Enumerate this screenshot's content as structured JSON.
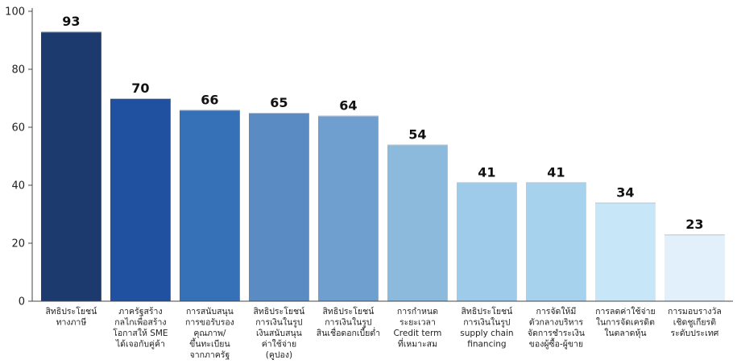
{
  "chart_data": {
    "type": "bar",
    "title": "",
    "xlabel": "",
    "ylabel": "",
    "ylim": [
      0,
      100
    ],
    "yticks": [
      0,
      20,
      40,
      60,
      80,
      100
    ],
    "grid": false,
    "categories": [
      [
        "สิทธิประโยชน์",
        "ทางภาษี"
      ],
      [
        "ภาครัฐสร้าง",
        "กลไกเพื่อสร้าง",
        "โอกาสให้ SME",
        "ได้เจอกับคู่ค้า"
      ],
      [
        "การสนับสนุน",
        "การขอรับรอง",
        "คุณภาพ/",
        "ขึ้นทะเบียน",
        "จากภาครัฐ"
      ],
      [
        "สิทธิประโยชน์",
        "การเงินในรูป",
        "เงินสนับสนุน",
        "ค่าใช้จ่าย",
        "(คูปอง)"
      ],
      [
        "สิทธิประโยชน์",
        "การเงินในรูป",
        "สินเชื่อดอกเบี้ยต่ำ"
      ],
      [
        "การกำหนด",
        "ระยะเวลา",
        "Credit term",
        "ที่เหมาะสม"
      ],
      [
        "สิทธิประโยชน์",
        "การเงินในรูป",
        "supply chain",
        "financing"
      ],
      [
        "การจัดให้มี",
        "ตัวกลางบริหาร",
        "จัดการชำระเงิน",
        "ของผู้ซื้อ-ผู้ขาย"
      ],
      [
        "การลดค่าใช้จ่าย",
        "ในการจัดเครดิต",
        "ในตลาดหุ้น"
      ],
      [
        "การมอบรางวัล",
        "เชิดชูเกียรติ",
        "ระดับประเทศ"
      ]
    ],
    "values": [
      93,
      70,
      66,
      65,
      64,
      54,
      41,
      41,
      34,
      23
    ],
    "colors": [
      "#1c3a6e",
      "#1f51a0",
      "#3670b6",
      "#5a8cc3",
      "#6f9fcf",
      "#8bbadd",
      "#9fcbea",
      "#a7d2ee",
      "#c7e6f7",
      "#e1f0fa"
    ]
  }
}
